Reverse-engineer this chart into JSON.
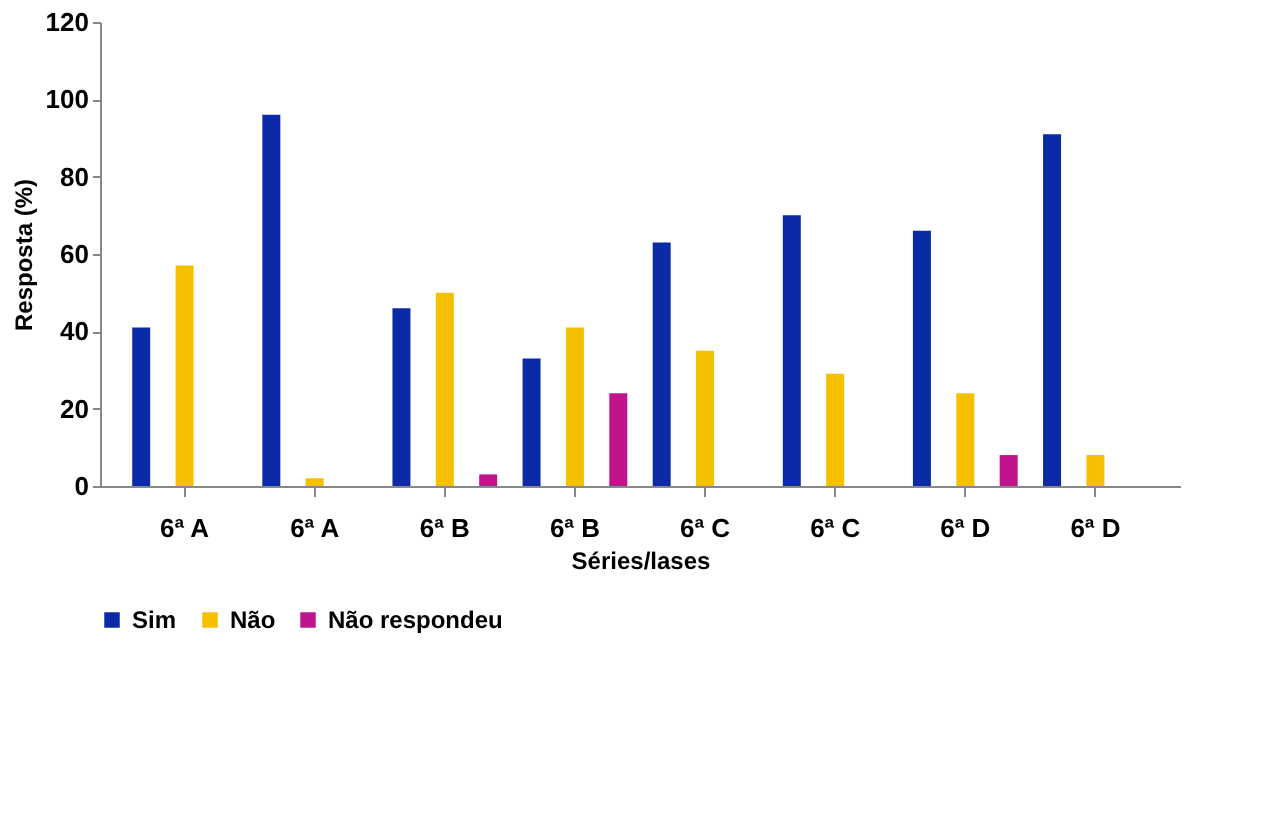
{
  "chart_data": {
    "type": "bar",
    "xlabel": "Séries/lases",
    "ylabel": "Resposta (%)",
    "categories": [
      "6ª A",
      "6ª A",
      "6ª B",
      "6ª B",
      "6ª C",
      "6ª C",
      "6ª D",
      "6ª D"
    ],
    "series": [
      {
        "name": "Sim",
        "color": "#0a2aa8",
        "values": [
          41,
          96,
          46,
          33,
          63,
          70,
          66,
          91
        ]
      },
      {
        "name": "Não",
        "color": "#f5c000",
        "values": [
          57,
          2,
          50,
          41,
          35,
          29,
          24,
          8
        ]
      },
      {
        "name": "Não respondeu",
        "color": "#c0148c",
        "values": [
          null,
          null,
          3,
          24,
          null,
          null,
          8,
          null
        ]
      }
    ],
    "ylim": [
      0,
      120
    ],
    "yticks": [
      0,
      20,
      40,
      60,
      80,
      100,
      120
    ],
    "grid": false,
    "legend": "bottom"
  }
}
